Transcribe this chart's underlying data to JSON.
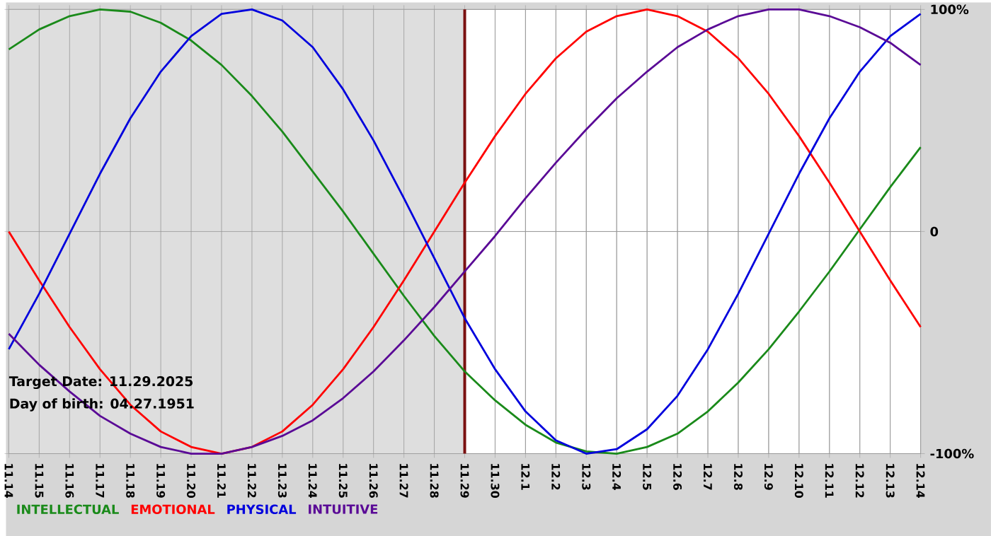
{
  "chart_data": {
    "type": "line",
    "categories": [
      "11.14",
      "11.15",
      "11.16",
      "11.17",
      "11.18",
      "11.19",
      "11.20",
      "11.21",
      "11.22",
      "11.23",
      "11.24",
      "11.25",
      "11.26",
      "11.27",
      "11.28",
      "11.29",
      "11.30",
      "12.1",
      "12.2",
      "12.3",
      "12.4",
      "12.5",
      "12.6",
      "12.7",
      "12.8",
      "12.9",
      "12.10",
      "12.11",
      "12.12",
      "12.13",
      "12.14"
    ],
    "series": [
      {
        "name": "INTELLECTUAL",
        "color": "#1a8a1a",
        "values": [
          82,
          91,
          97,
          100,
          99,
          94,
          86,
          75,
          61,
          45,
          27,
          9,
          -10,
          -29,
          -47,
          -63,
          -76,
          -87,
          -95,
          -99,
          -100,
          -97,
          -91,
          -81,
          -68,
          -53,
          -36,
          -18,
          1,
          20,
          38
        ]
      },
      {
        "name": "EMOTIONAL",
        "color": "#ff0000",
        "values": [
          0,
          -22,
          -43,
          -62,
          -78,
          -90,
          -97,
          -100,
          -97,
          -90,
          -78,
          -62,
          -43,
          -22,
          0,
          22,
          43,
          62,
          78,
          90,
          97,
          100,
          97,
          90,
          78,
          62,
          43,
          22,
          0,
          -22,
          -43
        ]
      },
      {
        "name": "PHYSICAL",
        "color": "#0000dd",
        "values": [
          -53,
          -28,
          -1,
          26,
          51,
          72,
          88,
          98,
          100,
          95,
          83,
          64,
          41,
          15,
          -12,
          -39,
          -62,
          -81,
          -94,
          -100,
          -98,
          -89,
          -74,
          -53,
          -28,
          -1,
          26,
          51,
          72,
          88,
          98
        ]
      },
      {
        "name": "INTUITIVE",
        "color": "#5a0a96",
        "values": [
          -46,
          -60,
          -72,
          -83,
          -91,
          -97,
          -100,
          -100,
          -97,
          -92,
          -85,
          -75,
          -63,
          -49,
          -34,
          -18,
          -2,
          15,
          31,
          46,
          60,
          72,
          83,
          91,
          97,
          100,
          100,
          97,
          92,
          85,
          75
        ]
      }
    ],
    "ylim": [
      -100,
      100
    ],
    "yticks": [
      {
        "value": 100,
        "label": "100%"
      },
      0,
      {
        "value": -100,
        "label": "-100%"
      }
    ],
    "grid": true,
    "legend": "bottom",
    "marker": "none",
    "line_style": "solid",
    "ref_lines": [
      {
        "axis": "x",
        "value": "11.29",
        "color": "#7a1010"
      }
    ],
    "bands": [
      {
        "axis": "x",
        "from": "11.14",
        "to": "11.29",
        "color": "#dedede"
      }
    ],
    "annotations": [
      "Target Date: 11.29.2025",
      "Day of birth: 04.27.1951"
    ]
  }
}
